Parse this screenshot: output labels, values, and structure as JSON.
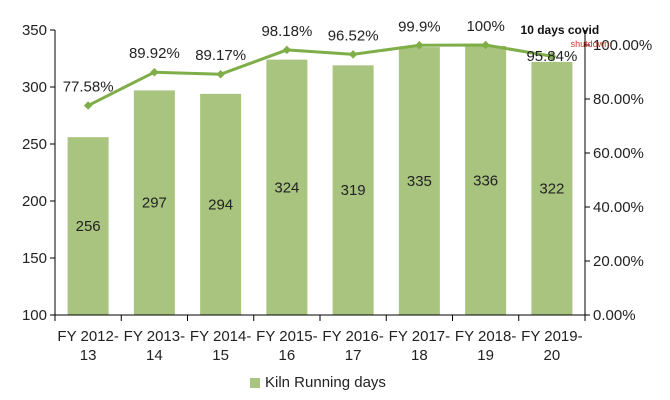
{
  "chart_data": {
    "type": "bar",
    "categories": [
      [
        "FY 2012-",
        "13"
      ],
      [
        "FY 2013-",
        "14"
      ],
      [
        "FY 2014-",
        "15"
      ],
      [
        "FY 2015-",
        "16"
      ],
      [
        "FY 2016-",
        "17"
      ],
      [
        "FY 2017-",
        "18"
      ],
      [
        "FY 2018-",
        "19"
      ],
      [
        "FY 2019-",
        "20"
      ]
    ],
    "series": [
      {
        "name": "Kiln Running days",
        "type": "bar",
        "axis": "left",
        "values": [
          256,
          297,
          294,
          324,
          319,
          335,
          336,
          322
        ],
        "labels": [
          "256",
          "297",
          "294",
          "324",
          "319",
          "335",
          "336",
          "322"
        ]
      },
      {
        "type": "line",
        "axis": "right",
        "values": [
          77.58,
          89.92,
          89.17,
          98.18,
          96.52,
          99.9,
          100,
          95.84
        ],
        "labels": [
          "77.58%",
          "89.92%",
          "89.17%",
          "98.18%",
          "96.52%",
          "99.9%",
          "100%",
          "95.84%"
        ]
      }
    ],
    "y_left": {
      "min": 100,
      "max": 350,
      "ticks": [
        100,
        150,
        200,
        250,
        300,
        350
      ],
      "tick_labels": [
        "100",
        "150",
        "200",
        "250",
        "300",
        "350"
      ]
    },
    "y_right": {
      "ticks": [
        0,
        20,
        40,
        60,
        80,
        100
      ],
      "tick_labels": [
        "0.00%",
        "20.00%",
        "40.00%",
        "60.00%",
        "80.00%",
        "100.00%"
      ]
    },
    "annotations": [
      {
        "text": "10 days covid",
        "category_index": 7
      },
      {
        "text": "shutdown",
        "category_index": 7
      }
    ],
    "legend": "bottom",
    "grid": false,
    "colors": {
      "bar": "#a9c47f",
      "line": "#7fae48",
      "text": "#222222",
      "axis": "#000000"
    }
  }
}
